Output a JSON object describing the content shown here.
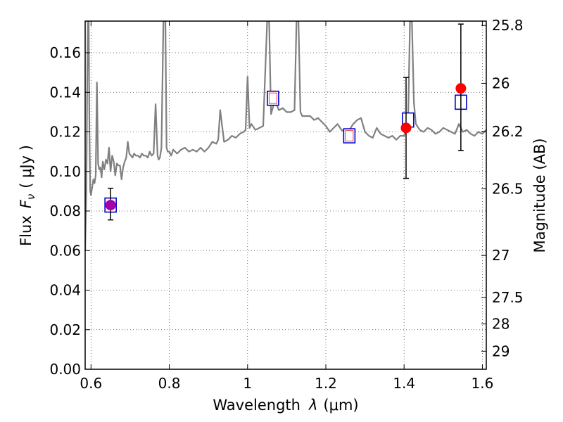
{
  "chart_data": {
    "type": "scatter",
    "xlabel_text": "Wavelength",
    "xlabel_symbol": "λ",
    "xlabel_unit": "(μm)",
    "ylabel_text": "Flux",
    "ylabel_symbol": "F",
    "ylabel_subscript": "ν",
    "ylabel_unit": "( μJy )",
    "y2label": "Magnitude (AB)",
    "xlim": [
      0.585,
      1.61
    ],
    "ylim": [
      0.0,
      0.176
    ],
    "grid": true,
    "x_ticks": [
      0.6,
      0.8,
      1.0,
      1.2,
      1.4,
      1.6
    ],
    "x_tick_labels": [
      "0.6",
      "0.8",
      "1",
      "1.2",
      "1.4",
      "1.6"
    ],
    "y_ticks": [
      0.0,
      0.02,
      0.04,
      0.06,
      0.08,
      0.1,
      0.12,
      0.14,
      0.16
    ],
    "y_tick_labels": [
      "0.00",
      "0.02",
      "0.04",
      "0.06",
      "0.08",
      "0.10",
      "0.12",
      "0.14",
      "0.16"
    ],
    "y2_ticks": [
      {
        "mag": 25.8,
        "label": "25.8"
      },
      {
        "mag": 26.0,
        "label": "26"
      },
      {
        "mag": 26.2,
        "label": "26.2"
      },
      {
        "mag": 26.5,
        "label": "26.5"
      },
      {
        "mag": 27.0,
        "label": "27"
      },
      {
        "mag": 27.5,
        "label": "27.5"
      },
      {
        "mag": 28.0,
        "label": "28"
      },
      {
        "mag": 29.0,
        "label": "29"
      }
    ],
    "model_spectrum": {
      "color": "#808080",
      "x": [
        0.585,
        0.588,
        0.59,
        0.592,
        0.594,
        0.596,
        0.598,
        0.6,
        0.603,
        0.606,
        0.609,
        0.612,
        0.615,
        0.618,
        0.621,
        0.624,
        0.627,
        0.63,
        0.634,
        0.638,
        0.642,
        0.646,
        0.65,
        0.654,
        0.658,
        0.662,
        0.666,
        0.67,
        0.674,
        0.678,
        0.682,
        0.686,
        0.69,
        0.694,
        0.698,
        0.702,
        0.706,
        0.71,
        0.715,
        0.72,
        0.725,
        0.73,
        0.735,
        0.74,
        0.745,
        0.75,
        0.755,
        0.76,
        0.765,
        0.77,
        0.773,
        0.776,
        0.78,
        0.785,
        0.79,
        0.793,
        0.796,
        0.8,
        0.805,
        0.81,
        0.82,
        0.83,
        0.84,
        0.85,
        0.86,
        0.87,
        0.88,
        0.89,
        0.9,
        0.91,
        0.92,
        0.925,
        0.93,
        0.94,
        0.95,
        0.96,
        0.97,
        0.98,
        0.99,
        0.995,
        1.0,
        1.005,
        1.01,
        1.02,
        1.03,
        1.04,
        1.05,
        1.055,
        1.06,
        1.07,
        1.08,
        1.09,
        1.1,
        1.11,
        1.12,
        1.125,
        1.13,
        1.135,
        1.14,
        1.15,
        1.16,
        1.17,
        1.18,
        1.19,
        1.2,
        1.21,
        1.22,
        1.23,
        1.24,
        1.25,
        1.26,
        1.27,
        1.28,
        1.29,
        1.3,
        1.31,
        1.32,
        1.33,
        1.34,
        1.35,
        1.36,
        1.37,
        1.38,
        1.39,
        1.4,
        1.405,
        1.41,
        1.415,
        1.42,
        1.425,
        1.43,
        1.44,
        1.45,
        1.46,
        1.47,
        1.48,
        1.49,
        1.5,
        1.51,
        1.52,
        1.53,
        1.54,
        1.55,
        1.56,
        1.57,
        1.58,
        1.59,
        1.6,
        1.61
      ],
      "y": [
        0.06,
        0.09,
        0.14,
        0.176,
        0.176,
        0.12,
        0.09,
        0.088,
        0.092,
        0.096,
        0.094,
        0.098,
        0.145,
        0.104,
        0.101,
        0.102,
        0.097,
        0.105,
        0.101,
        0.106,
        0.104,
        0.112,
        0.1,
        0.108,
        0.105,
        0.098,
        0.104,
        0.103,
        0.103,
        0.096,
        0.102,
        0.105,
        0.107,
        0.115,
        0.109,
        0.108,
        0.107,
        0.109,
        0.108,
        0.108,
        0.107,
        0.109,
        0.108,
        0.108,
        0.107,
        0.11,
        0.108,
        0.109,
        0.134,
        0.108,
        0.106,
        0.107,
        0.112,
        0.176,
        0.176,
        0.112,
        0.11,
        0.11,
        0.108,
        0.111,
        0.109,
        0.111,
        0.112,
        0.11,
        0.111,
        0.11,
        0.112,
        0.11,
        0.112,
        0.115,
        0.114,
        0.116,
        0.131,
        0.115,
        0.116,
        0.118,
        0.117,
        0.119,
        0.12,
        0.121,
        0.148,
        0.122,
        0.124,
        0.121,
        0.122,
        0.123,
        0.176,
        0.176,
        0.129,
        0.136,
        0.131,
        0.132,
        0.13,
        0.13,
        0.131,
        0.176,
        0.176,
        0.13,
        0.128,
        0.128,
        0.128,
        0.126,
        0.127,
        0.125,
        0.123,
        0.12,
        0.122,
        0.124,
        0.121,
        0.12,
        0.121,
        0.124,
        0.126,
        0.127,
        0.12,
        0.118,
        0.117,
        0.122,
        0.119,
        0.118,
        0.117,
        0.118,
        0.116,
        0.118,
        0.118,
        0.121,
        0.124,
        0.176,
        0.176,
        0.135,
        0.124,
        0.121,
        0.12,
        0.122,
        0.121,
        0.119,
        0.12,
        0.122,
        0.121,
        0.12,
        0.119,
        0.124,
        0.12,
        0.121,
        0.119,
        0.118,
        0.12,
        0.119,
        0.121
      ]
    },
    "observed_points": {
      "color": "#ff0000",
      "points": [
        {
          "x": 0.65,
          "y": 0.083,
          "yerr_low": 0.0075,
          "yerr_high": 0.0085,
          "color": "#aa00aa"
        },
        {
          "x": 1.405,
          "y": 0.122,
          "yerr_low": 0.0255,
          "yerr_high": 0.0255
        },
        {
          "x": 1.545,
          "y": 0.142,
          "yerr_low": 0.0315,
          "yerr_high": 0.0325
        }
      ]
    },
    "model_photometry": {
      "color": "#0000cc",
      "fill_colors": [
        "#ffffff",
        "#ffffff",
        "#ffffff",
        "#ffffff",
        "#ffffff"
      ],
      "inner_outline_colors": [
        "",
        "#ff4040",
        "#ff4040",
        "",
        ""
      ],
      "points": [
        {
          "x": 0.65,
          "y": 0.083
        },
        {
          "x": 1.065,
          "y": 0.137
        },
        {
          "x": 1.26,
          "y": 0.118
        },
        {
          "x": 1.41,
          "y": 0.126
        },
        {
          "x": 1.545,
          "y": 0.135
        }
      ]
    }
  }
}
